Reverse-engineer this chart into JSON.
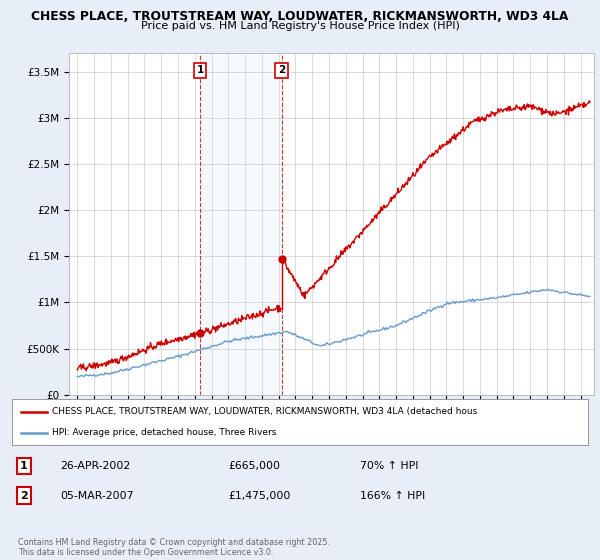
{
  "title1": "CHESS PLACE, TROUTSTREAM WAY, LOUDWATER, RICKMANSWORTH, WD3 4LA",
  "title2": "Price paid vs. HM Land Registry's House Price Index (HPI)",
  "background_color": "#e8eef8",
  "plot_bg_color": "#ffffff",
  "red_color": "#cc0000",
  "blue_color": "#6699cc",
  "shade_color": "#ddeeff",
  "annotation1": {
    "label": "1",
    "date": "26-APR-2002",
    "price": 665000,
    "price_str": "£665,000",
    "hpi": "70% ↑ HPI",
    "x_year": 2002.32
  },
  "annotation2": {
    "label": "2",
    "date": "05-MAR-2007",
    "price": 1475000,
    "price_str": "£1,475,000",
    "hpi": "166% ↑ HPI",
    "x_year": 2007.18
  },
  "legend_line1": "CHESS PLACE, TROUTSTREAM WAY, LOUDWATER, RICKMANSWORTH, WD3 4LA (detached hous",
  "legend_line2": "HPI: Average price, detached house, Three Rivers",
  "footer": "Contains HM Land Registry data © Crown copyright and database right 2025.\nThis data is licensed under the Open Government Licence v3.0.",
  "ylim": [
    0,
    3700000
  ],
  "yticks": [
    0,
    500000,
    1000000,
    1500000,
    2000000,
    2500000,
    3000000,
    3500000
  ],
  "ytick_labels": [
    "£0",
    "£500K",
    "£1M",
    "£1.5M",
    "£2M",
    "£2.5M",
    "£3M",
    "£3.5M"
  ],
  "xlim_start": 1994.5,
  "xlim_end": 2025.8
}
